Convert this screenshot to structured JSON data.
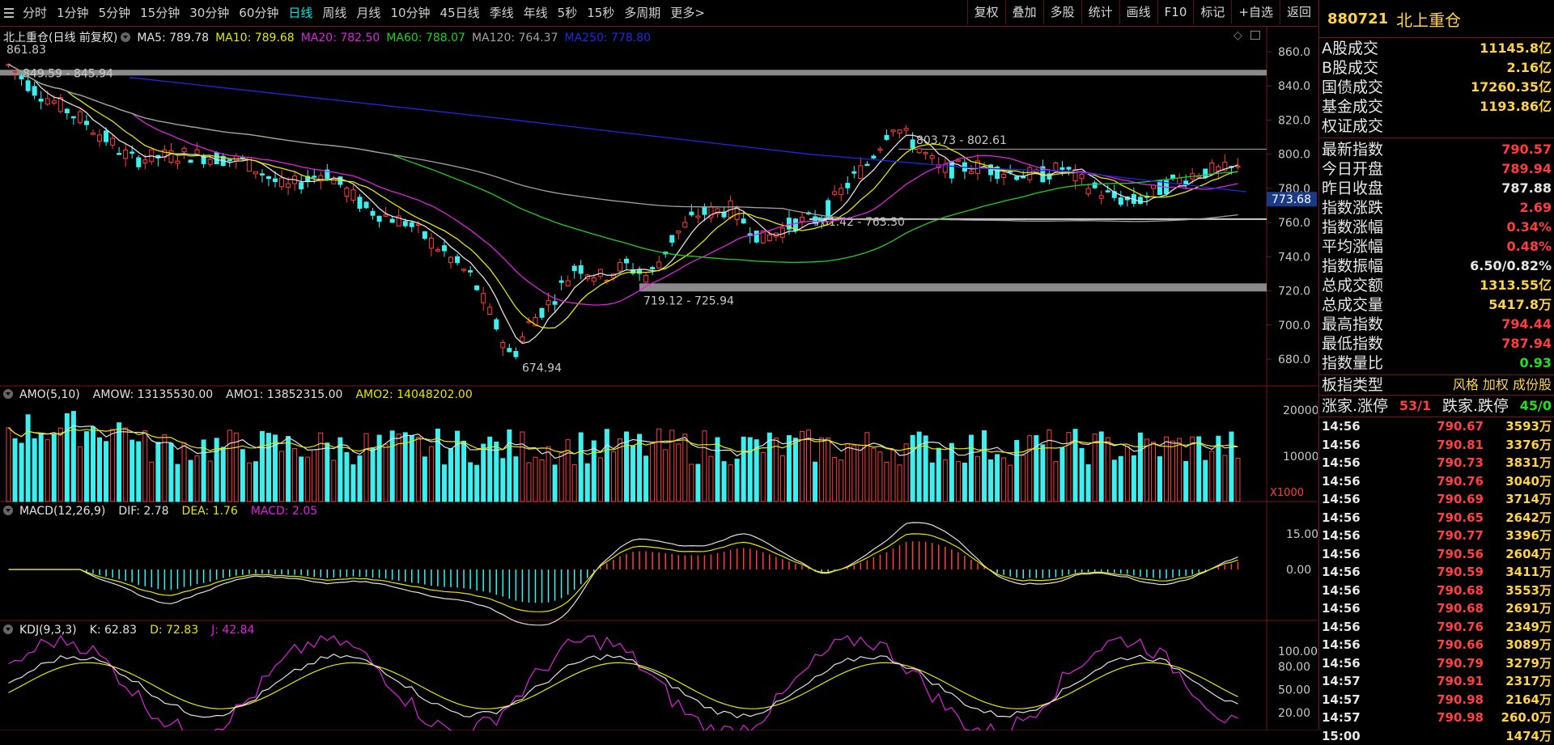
{
  "colors": {
    "up": "#ff3d3d",
    "down": "#3cf0f0",
    "ma5": "#e0e0e0",
    "ma10": "#e6e600",
    "ma20": "#e020e0",
    "ma60": "#20d020",
    "ma120": "#a0a0a0",
    "ma250": "#1e28e6",
    "frame": "#7a1414"
  },
  "toolbar": {
    "menu_icon": "hamburger-icon",
    "timeframes": [
      "分时",
      "1分钟",
      "5分钟",
      "15分钟",
      "30分钟",
      "60分钟",
      "日线",
      "周线",
      "月线",
      "10分钟",
      "45日线",
      "季线",
      "年线",
      "5秒",
      "15秒",
      "多周期",
      "更多>"
    ],
    "active": "日线",
    "right_buttons": [
      "复权",
      "叠加",
      "多股",
      "统计",
      "画线",
      "F10",
      "标记",
      "+自选",
      "返回"
    ]
  },
  "main_chart": {
    "title": "北上重仓(日线 前复权)",
    "ma_legend": [
      {
        "label": "MA5: 789.78",
        "color": "#e0e0e0"
      },
      {
        "label": "MA10: 789.68",
        "color": "#e6e600"
      },
      {
        "label": "MA20: 782.50",
        "color": "#e020e0"
      },
      {
        "label": "MA60: 788.07",
        "color": "#20d020"
      },
      {
        "label": "MA120: 764.37",
        "color": "#a0a0a0"
      },
      {
        "label": "MA250: 778.80",
        "color": "#1e28e6"
      }
    ],
    "y_ticks": [
      "860.0",
      "840.0",
      "820.0",
      "800.0",
      "780.0",
      "760.0",
      "740.0",
      "720.0",
      "700.0",
      "680.0"
    ],
    "current_price": "773.68",
    "annotations": {
      "high": "861.83",
      "band_top": "849.59 - 845.94",
      "low": "674.94",
      "band_mid": "719.12 - 725.94",
      "band_low": "761.42 - 763.30",
      "band_right": "803.73 - 802.61"
    }
  },
  "amo_panel": {
    "label": "AMO(5,10)",
    "values": [
      {
        "label": "AMOW: 13135530.00",
        "color": "#e0e0e0"
      },
      {
        "label": "AMO1: 13852315.00",
        "color": "#e0e0e0"
      },
      {
        "label": "AMO2: 14048202.00",
        "color": "#e6e600"
      }
    ],
    "y_ticks": [
      "20000",
      "10000"
    ],
    "unit": "X1000"
  },
  "macd_panel": {
    "label": "MACD(12,26,9)",
    "values": [
      {
        "label": "DIF: 2.78",
        "color": "#e0e0e0"
      },
      {
        "label": "DEA: 1.76",
        "color": "#e6e600"
      },
      {
        "label": "MACD: 2.05",
        "color": "#e020e0"
      }
    ],
    "y_ticks": [
      "15.00",
      "0.00"
    ]
  },
  "kdj_panel": {
    "label": "KDJ(9,3,3)",
    "values": [
      {
        "label": "K: 62.83",
        "color": "#e0e0e0"
      },
      {
        "label": "D: 72.83",
        "color": "#e6e600"
      },
      {
        "label": "J: 42.84",
        "color": "#e020e0"
      }
    ],
    "y_ticks": [
      "100.00",
      "80.00",
      "50.00",
      "20.00"
    ]
  },
  "right_panel": {
    "code": "880721",
    "name": "北上重仓",
    "turnover": [
      {
        "k": "A股成交",
        "v": "11145.8亿",
        "c": "#ffd24a"
      },
      {
        "k": "B股成交",
        "v": "2.16亿",
        "c": "#ffd24a"
      },
      {
        "k": "国债成交",
        "v": "17260.35亿",
        "c": "#ffd24a"
      },
      {
        "k": "基金成交",
        "v": "1193.86亿",
        "c": "#ffd24a"
      },
      {
        "k": "权证成交",
        "v": "",
        "c": "#ffd24a"
      }
    ],
    "stats": [
      {
        "k": "最新指数",
        "v": "790.57",
        "c": "#ff3d3d"
      },
      {
        "k": "今日开盘",
        "v": "789.94",
        "c": "#ff3d3d"
      },
      {
        "k": "昨日收盘",
        "v": "787.88",
        "c": "#e6e6e6"
      },
      {
        "k": "指数涨跌",
        "v": "2.69",
        "c": "#ff3d3d"
      },
      {
        "k": "指数涨幅",
        "v": "0.34%",
        "c": "#ff3d3d"
      },
      {
        "k": "平均涨幅",
        "v": "0.48%",
        "c": "#ff3d3d"
      },
      {
        "k": "指数振幅",
        "v": "6.50/0.82%",
        "c": "#e6e6e6"
      },
      {
        "k": "总成交额",
        "v": "1313.55亿",
        "c": "#ffd24a"
      },
      {
        "k": "总成交量",
        "v": "5417.8万",
        "c": "#ffd24a"
      },
      {
        "k": "最高指数",
        "v": "794.44",
        "c": "#ff3d3d"
      },
      {
        "k": "最低指数",
        "v": "787.94",
        "c": "#ff3d3d"
      },
      {
        "k": "指数量比",
        "v": "0.93",
        "c": "#20e020"
      }
    ],
    "sector_type": {
      "k": "板指类型",
      "v": "风格 加权 成份股"
    },
    "advance": {
      "k1": "涨家.涨停",
      "v1": "53/1",
      "k2": "跌家.跌停",
      "v2": "45/0"
    },
    "ticks": [
      {
        "t": "14:56",
        "p": "790.67",
        "v": "3593万"
      },
      {
        "t": "14:56",
        "p": "790.81",
        "v": "3376万"
      },
      {
        "t": "14:56",
        "p": "790.73",
        "v": "3831万"
      },
      {
        "t": "14:56",
        "p": "790.76",
        "v": "3040万"
      },
      {
        "t": "14:56",
        "p": "790.69",
        "v": "3714万"
      },
      {
        "t": "14:56",
        "p": "790.65",
        "v": "2642万"
      },
      {
        "t": "14:56",
        "p": "790.77",
        "v": "3396万"
      },
      {
        "t": "14:56",
        "p": "790.56",
        "v": "2604万"
      },
      {
        "t": "14:56",
        "p": "790.59",
        "v": "3411万"
      },
      {
        "t": "14:56",
        "p": "790.68",
        "v": "3553万"
      },
      {
        "t": "14:56",
        "p": "790.68",
        "v": "2691万"
      },
      {
        "t": "14:56",
        "p": "790.76",
        "v": "2349万"
      },
      {
        "t": "14:56",
        "p": "790.66",
        "v": "3089万"
      },
      {
        "t": "14:56",
        "p": "790.79",
        "v": "3279万"
      },
      {
        "t": "14:57",
        "p": "790.91",
        "v": "2317万"
      },
      {
        "t": "14:57",
        "p": "790.98",
        "v": "2164万"
      },
      {
        "t": "14:57",
        "p": "790.98",
        "v": "260.0万"
      },
      {
        "t": "15:00",
        "p": "",
        "v": "1474万"
      }
    ]
  }
}
